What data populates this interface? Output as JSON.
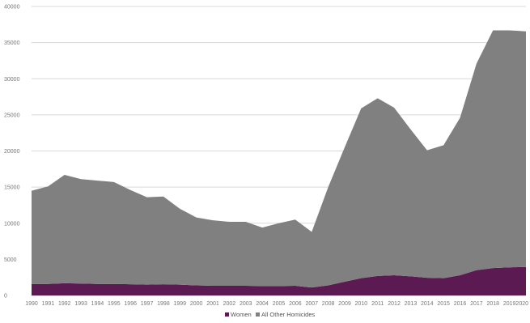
{
  "chart_data": {
    "type": "area",
    "stacked": true,
    "x": [
      "1990",
      "1991",
      "1992",
      "1993",
      "1994",
      "1995",
      "1996",
      "1997",
      "1998",
      "1999",
      "2000",
      "2001",
      "2002",
      "2003",
      "2004",
      "2005",
      "2006",
      "2007",
      "2008",
      "2009",
      "2010",
      "2011",
      "2012",
      "2013",
      "2014",
      "2015",
      "2016",
      "2017",
      "2018",
      "2019",
      "2020"
    ],
    "ylim": [
      0,
      40000
    ],
    "yticks": [
      0,
      5000,
      10000,
      15000,
      20000,
      25000,
      30000,
      35000,
      40000
    ],
    "grid": true,
    "legend_position": "bottom",
    "series": [
      {
        "name": "Women",
        "color": "#5c1a52",
        "values": [
          1600,
          1600,
          1700,
          1650,
          1600,
          1600,
          1550,
          1500,
          1550,
          1500,
          1400,
          1350,
          1350,
          1350,
          1300,
          1300,
          1350,
          1100,
          1400,
          1900,
          2400,
          2700,
          2800,
          2650,
          2450,
          2400,
          2800,
          3500,
          3800,
          3900,
          3950
        ]
      },
      {
        "name": "All Other Homicides",
        "color": "#808080",
        "values": [
          12900,
          13500,
          15000,
          14450,
          14300,
          14100,
          13050,
          12100,
          12150,
          10500,
          9400,
          9050,
          8850,
          8850,
          8100,
          8700,
          9150,
          7700,
          13600,
          18600,
          23500,
          24600,
          23200,
          20350,
          17650,
          18400,
          21800,
          28600,
          32900,
          32800,
          32600
        ]
      }
    ]
  }
}
